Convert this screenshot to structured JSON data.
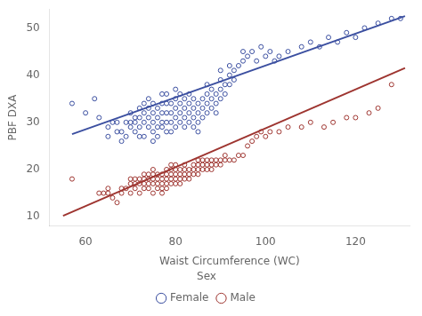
{
  "chart_data": {
    "type": "scatter",
    "xlabel": "Waist Circumference (WC)",
    "ylabel": "PBF DXA",
    "xlim": [
      52,
      132
    ],
    "ylim": [
      8,
      54
    ],
    "xticks": [
      60,
      80,
      100,
      120
    ],
    "yticks": [
      10,
      20,
      30,
      40,
      50
    ],
    "grid": false,
    "legend": "bottom",
    "legend_title": "Sex",
    "series": [
      {
        "name": "Female",
        "color": "#3B4FA0",
        "marker": "circle",
        "x": [
          57,
          60,
          62,
          63,
          65,
          65,
          66,
          67,
          67,
          68,
          68,
          69,
          69,
          70,
          70,
          70,
          71,
          71,
          71,
          72,
          72,
          72,
          72,
          73,
          73,
          73,
          73,
          74,
          74,
          74,
          74,
          75,
          75,
          75,
          75,
          75,
          76,
          76,
          76,
          76,
          77,
          77,
          77,
          77,
          77,
          78,
          78,
          78,
          78,
          78,
          79,
          79,
          79,
          79,
          80,
          80,
          80,
          80,
          80,
          81,
          81,
          81,
          81,
          82,
          82,
          82,
          82,
          83,
          83,
          83,
          83,
          84,
          84,
          84,
          84,
          85,
          85,
          85,
          85,
          86,
          86,
          86,
          87,
          87,
          87,
          87,
          88,
          88,
          88,
          89,
          89,
          89,
          90,
          90,
          90,
          90,
          91,
          91,
          92,
          92,
          92,
          93,
          93,
          94,
          95,
          95,
          96,
          97,
          98,
          99,
          100,
          101,
          102,
          103,
          105,
          108,
          110,
          112,
          114,
          116,
          118,
          120,
          122,
          125,
          128,
          130
        ],
        "values": [
          34,
          32,
          35,
          31,
          29,
          27,
          30,
          28,
          30,
          26,
          28,
          30,
          27,
          29,
          30,
          32,
          28,
          30,
          31,
          27,
          29,
          31,
          33,
          27,
          30,
          32,
          34,
          29,
          31,
          33,
          35,
          26,
          28,
          30,
          32,
          34,
          27,
          29,
          31,
          33,
          30,
          32,
          34,
          36,
          29,
          28,
          30,
          32,
          34,
          36,
          28,
          30,
          32,
          34,
          29,
          31,
          33,
          35,
          37,
          30,
          32,
          34,
          36,
          29,
          31,
          33,
          35,
          30,
          32,
          34,
          36,
          29,
          31,
          33,
          35,
          28,
          30,
          32,
          34,
          31,
          33,
          35,
          32,
          34,
          36,
          38,
          33,
          35,
          37,
          32,
          34,
          36,
          35,
          37,
          39,
          41,
          36,
          38,
          38,
          40,
          42,
          39,
          41,
          42,
          43,
          45,
          44,
          45,
          43,
          46,
          44,
          45,
          43,
          44,
          45,
          46,
          47,
          46,
          48,
          47,
          49,
          48,
          50,
          51,
          52,
          52
        ]
      },
      {
        "name": "Male",
        "color": "#9E3530",
        "marker": "circle",
        "x": [
          57,
          63,
          64,
          65,
          65,
          66,
          67,
          68,
          68,
          69,
          70,
          70,
          70,
          71,
          71,
          71,
          72,
          72,
          72,
          73,
          73,
          73,
          73,
          74,
          74,
          74,
          74,
          75,
          75,
          75,
          75,
          75,
          76,
          76,
          76,
          76,
          77,
          77,
          77,
          77,
          77,
          78,
          78,
          78,
          78,
          78,
          79,
          79,
          79,
          79,
          79,
          80,
          80,
          80,
          80,
          80,
          81,
          81,
          81,
          81,
          82,
          82,
          82,
          82,
          83,
          83,
          83,
          84,
          84,
          84,
          85,
          85,
          85,
          85,
          86,
          86,
          86,
          87,
          87,
          87,
          88,
          88,
          88,
          89,
          89,
          90,
          90,
          91,
          91,
          92,
          93,
          94,
          95,
          96,
          97,
          98,
          99,
          100,
          101,
          103,
          105,
          108,
          110,
          113,
          115,
          118,
          120,
          123,
          125,
          128
        ],
        "values": [
          18,
          15,
          15,
          15,
          16,
          14,
          13,
          15,
          16,
          16,
          15,
          17,
          18,
          16,
          17,
          18,
          15,
          17,
          18,
          16,
          17,
          18,
          19,
          16,
          17,
          18,
          19,
          15,
          17,
          18,
          19,
          20,
          16,
          17,
          18,
          19,
          15,
          16,
          17,
          18,
          19,
          16,
          17,
          18,
          19,
          20,
          17,
          18,
          19,
          20,
          21,
          17,
          18,
          19,
          20,
          21,
          17,
          18,
          19,
          20,
          18,
          19,
          20,
          21,
          18,
          19,
          20,
          19,
          20,
          21,
          19,
          20,
          21,
          22,
          20,
          21,
          22,
          20,
          21,
          22,
          20,
          21,
          22,
          21,
          22,
          21,
          22,
          22,
          23,
          22,
          22,
          23,
          23,
          25,
          26,
          27,
          28,
          27,
          28,
          28,
          29,
          29,
          30,
          29,
          30,
          31,
          31,
          32,
          33,
          38
        ]
      },
      {
        "type": "line",
        "color": "#3B4FA0",
        "x": [
          57,
          131
        ],
        "values": [
          27.5,
          52.5
        ]
      },
      {
        "type": "line",
        "color": "#9E3530",
        "x": [
          55,
          131
        ],
        "values": [
          10.2,
          41.5
        ]
      }
    ]
  }
}
